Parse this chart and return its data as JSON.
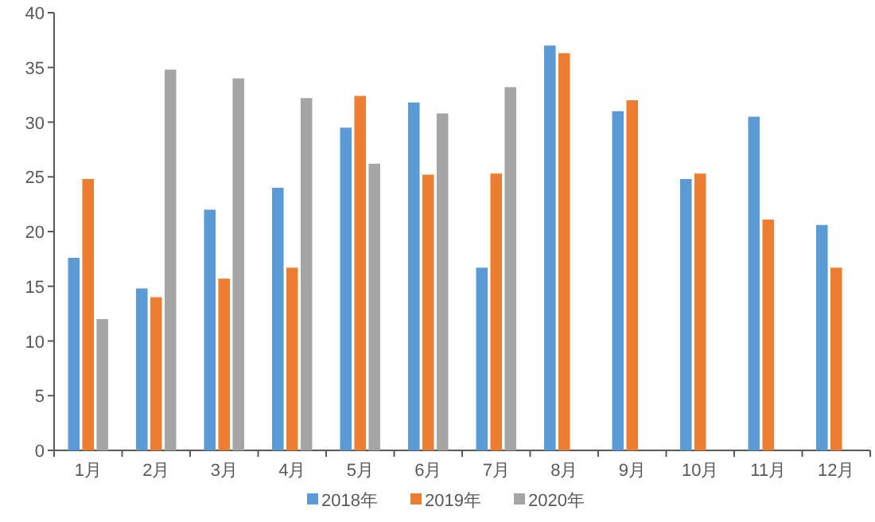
{
  "chart_data": {
    "type": "bar",
    "categories": [
      "1月",
      "2月",
      "3月",
      "4月",
      "5月",
      "6月",
      "7月",
      "8月",
      "9月",
      "10月",
      "11月",
      "12月"
    ],
    "series": [
      {
        "name": "2018年",
        "color": "#5b9bd5",
        "values": [
          17.6,
          14.8,
          22,
          24,
          29.5,
          31.8,
          16.7,
          37,
          31,
          24.8,
          30.5,
          20.6
        ]
      },
      {
        "name": "2019年",
        "color": "#ed7d31",
        "values": [
          24.8,
          14,
          15.7,
          16.7,
          32.4,
          25.2,
          25.3,
          36.3,
          32,
          25.3,
          21.1,
          16.7
        ]
      },
      {
        "name": "2020年",
        "color": "#a5a5a5",
        "values": [
          12,
          34.8,
          34,
          32.2,
          26.2,
          30.8,
          33.2,
          null,
          null,
          null,
          null,
          null
        ]
      }
    ],
    "ylim": [
      0,
      40
    ],
    "yticks": [
      0,
      5,
      10,
      15,
      20,
      25,
      30,
      35,
      40
    ],
    "grid": false,
    "legend": "bottom"
  }
}
